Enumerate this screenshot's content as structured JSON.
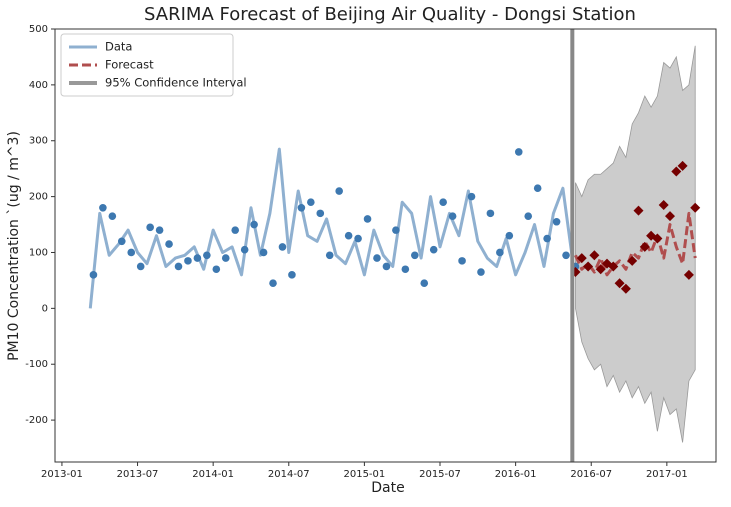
{
  "chart_data": {
    "type": "timeseries",
    "title": "SARIMA Forecast of Beijing Air Quality - Dongsi Station",
    "x_label": "Date",
    "y_label": "PM10 Concentration `(ug / m^3)",
    "xlim": [
      -0.55,
      51.9
    ],
    "ylim": [
      -275,
      500
    ],
    "xticks": [
      {
        "value": 0,
        "label": "2013-01"
      },
      {
        "value": 6,
        "label": "2013-07"
      },
      {
        "value": 12,
        "label": "2014-01"
      },
      {
        "value": 18,
        "label": "2014-07"
      },
      {
        "value": 24,
        "label": "2015-01"
      },
      {
        "value": 30,
        "label": "2015-07"
      },
      {
        "value": 36,
        "label": "2016-01"
      },
      {
        "value": 42,
        "label": "2016-07"
      },
      {
        "value": 48,
        "label": "2017-01"
      }
    ],
    "yticks": [
      -200,
      -100,
      0,
      100,
      200,
      300,
      400,
      500
    ],
    "legend": "upper left",
    "vline": {
      "x": 40.5,
      "color": "#888888"
    },
    "series": [
      {
        "name": "Data",
        "kind": "line",
        "color": "#8fb0d0",
        "x": [
          2.25,
          3,
          3.75,
          4.5,
          5.25,
          6,
          6.75,
          7.5,
          8.25,
          9,
          9.75,
          10.5,
          11.25,
          12,
          12.75,
          13.5,
          14.25,
          15,
          15.75,
          16.5,
          17.25,
          18,
          18.75,
          19.5,
          20.25,
          21,
          21.75,
          22.5,
          23.25,
          24,
          24.75,
          25.5,
          26.25,
          27,
          27.75,
          28.5,
          29.25,
          30,
          30.75,
          31.5,
          32.25,
          33,
          33.75,
          34.5,
          35.25,
          36,
          36.75,
          37.5,
          38.25,
          39,
          39.75,
          40.5
        ],
        "values": [
          0,
          170,
          95,
          115,
          140,
          100,
          80,
          130,
          75,
          90,
          95,
          110,
          70,
          140,
          100,
          110,
          60,
          180,
          95,
          170,
          285,
          100,
          210,
          130,
          120,
          160,
          95,
          80,
          120,
          60,
          140,
          95,
          75,
          190,
          170,
          90,
          200,
          110,
          170,
          130,
          210,
          120,
          90,
          75,
          125,
          60,
          100,
          150,
          75,
          170,
          215,
          90
        ]
      },
      {
        "kind": "scatter",
        "color": "#3d78b0",
        "x": [
          2.5,
          3.25,
          4,
          4.75,
          5.5,
          6.25,
          7,
          7.75,
          8.5,
          9.25,
          10,
          10.75,
          11.5,
          12.25,
          13,
          13.75,
          14.5,
          15.25,
          16,
          16.75,
          17.5,
          18.25,
          19,
          19.75,
          20.5,
          21.25,
          22,
          22.75,
          23.5,
          24.25,
          25,
          25.75,
          26.5,
          27.25,
          28,
          28.75,
          29.5,
          30.25,
          31,
          31.75,
          32.5,
          33.25,
          34,
          34.75,
          35.5,
          36.25,
          37,
          37.75,
          38.5,
          39.25,
          40,
          40.75
        ],
        "values": [
          60,
          180,
          165,
          120,
          100,
          75,
          145,
          140,
          115,
          75,
          85,
          90,
          95,
          70,
          90,
          140,
          105,
          150,
          100,
          45,
          110,
          60,
          180,
          190,
          170,
          95,
          210,
          130,
          125,
          160,
          90,
          75,
          140,
          70,
          95,
          45,
          105,
          190,
          165,
          85,
          200,
          65,
          170,
          100,
          130,
          280,
          165,
          215,
          125,
          155,
          95,
          75
        ]
      },
      {
        "name": "Forecast",
        "kind": "line",
        "dash": true,
        "color": "#b04e4e",
        "x": [
          40.75,
          41.25,
          41.75,
          42.25,
          42.75,
          43.25,
          43.75,
          44.25,
          44.75,
          45.25,
          45.75,
          46.25,
          46.75,
          47.25,
          47.75,
          48.25,
          48.75,
          49.25,
          49.75,
          50.25
        ],
        "values": [
          95,
          70,
          80,
          65,
          90,
          60,
          75,
          85,
          70,
          100,
          90,
          120,
          100,
          130,
          90,
          150,
          110,
          80,
          170,
          90
        ]
      },
      {
        "kind": "scatter",
        "marker": "diamond",
        "color": "#750000",
        "x": [
          40.75,
          41.25,
          41.75,
          42.25,
          42.75,
          43.25,
          43.75,
          44.25,
          44.75,
          45.25,
          45.75,
          46.25,
          46.75,
          47.25,
          47.75,
          48.25,
          48.75,
          49.25,
          49.75,
          50.25
        ],
        "values": [
          65,
          90,
          75,
          95,
          70,
          80,
          75,
          45,
          35,
          85,
          175,
          110,
          130,
          125,
          185,
          165,
          245,
          255,
          60,
          180
        ]
      },
      {
        "name": "95% Confidence Interval",
        "kind": "band",
        "color": "#999999",
        "x": [
          40.75,
          41.25,
          41.75,
          42.25,
          42.75,
          43.25,
          43.75,
          44.25,
          44.75,
          45.25,
          45.75,
          46.25,
          46.75,
          47.25,
          47.75,
          48.25,
          48.75,
          49.25,
          49.75,
          50.25
        ],
        "lower": [
          0,
          -60,
          -90,
          -110,
          -100,
          -140,
          -120,
          -150,
          -130,
          -160,
          -140,
          -170,
          -150,
          -220,
          -160,
          -190,
          -180,
          -240,
          -130,
          -110
        ],
        "upper": [
          225,
          200,
          230,
          240,
          240,
          250,
          260,
          290,
          270,
          330,
          350,
          380,
          360,
          380,
          440,
          430,
          450,
          390,
          400,
          470
        ]
      }
    ]
  }
}
